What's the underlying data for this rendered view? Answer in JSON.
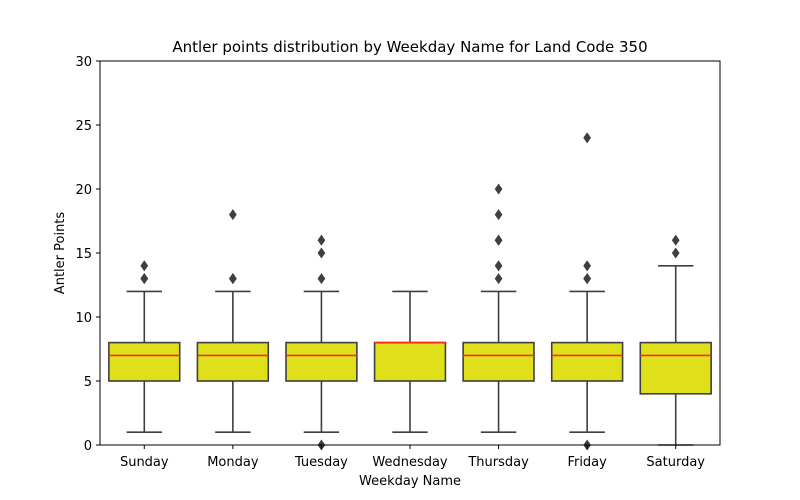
{
  "chart_data": {
    "type": "box",
    "title": "Antler points distribution by Weekday Name for Land Code 350",
    "xlabel": "Weekday Name",
    "ylabel": "Antler Points",
    "ylim": [
      0,
      30
    ],
    "yticks": [
      0,
      5,
      10,
      15,
      20,
      25,
      30
    ],
    "categories": [
      "Sunday",
      "Monday",
      "Tuesday",
      "Wednesday",
      "Thursday",
      "Friday",
      "Saturday"
    ],
    "boxes": [
      {
        "category": "Sunday",
        "whisker_low": 1,
        "q1": 5,
        "median": 7,
        "q3": 8,
        "whisker_high": 12,
        "outliers": [
          13,
          13,
          14
        ]
      },
      {
        "category": "Monday",
        "whisker_low": 1,
        "q1": 5,
        "median": 7,
        "q3": 8,
        "whisker_high": 12,
        "outliers": [
          13,
          13,
          18
        ]
      },
      {
        "category": "Tuesday",
        "whisker_low": 1,
        "q1": 5,
        "median": 7,
        "q3": 8,
        "whisker_high": 12,
        "outliers": [
          0,
          13,
          15,
          16
        ]
      },
      {
        "category": "Wednesday",
        "whisker_low": 1,
        "q1": 5,
        "median": 8,
        "q3": 8,
        "whisker_high": 12,
        "outliers": []
      },
      {
        "category": "Thursday",
        "whisker_low": 1,
        "q1": 5,
        "median": 7,
        "q3": 8,
        "whisker_high": 12,
        "outliers": [
          13,
          14,
          16,
          16,
          18,
          20
        ]
      },
      {
        "category": "Friday",
        "whisker_low": 1,
        "q1": 5,
        "median": 7,
        "q3": 8,
        "whisker_high": 12,
        "outliers": [
          0,
          13,
          13,
          14,
          24
        ]
      },
      {
        "category": "Saturday",
        "whisker_low": 0,
        "q1": 4,
        "median": 7,
        "q3": 8,
        "whisker_high": 14,
        "outliers": [
          15,
          16
        ]
      }
    ],
    "colors": {
      "box_fill": "#e0e01a",
      "box_edge": "#3f3f3f",
      "median": "#ff2a1a",
      "axis": "#000000"
    }
  }
}
